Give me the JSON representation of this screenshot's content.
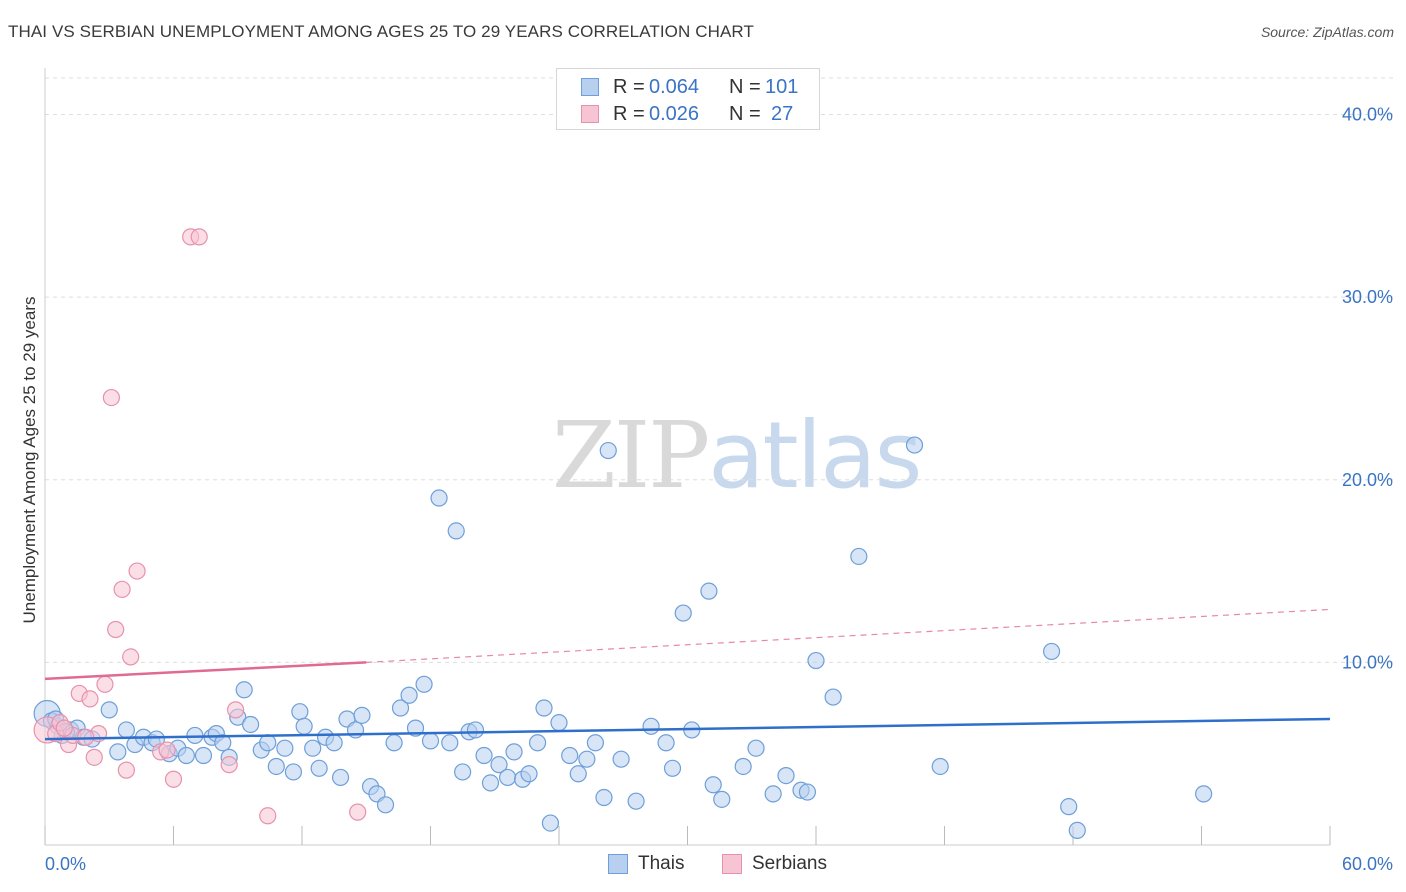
{
  "header": {
    "title": "THAI VS SERBIAN UNEMPLOYMENT AMONG AGES 25 TO 29 YEARS CORRELATION CHART",
    "source": "Source: ZipAtlas.com"
  },
  "watermark": {
    "zip": "ZIP",
    "atlas": "atlas"
  },
  "stats": {
    "r_label": "R =",
    "n_label": "N =",
    "thais": {
      "r": "0.064",
      "n": "101"
    },
    "serbians": {
      "r": "0.026",
      "n": "27"
    }
  },
  "legend": {
    "thais": "Thais",
    "serbians": "Serbians"
  },
  "colors": {
    "thais_fill": "#b7d0f0",
    "thais_stroke": "#6e9fd8",
    "thais_line": "#2f6fcc",
    "serbians_fill": "#f7c4d4",
    "serbians_stroke": "#e891ad",
    "serbians_line": "#e06a93",
    "tick_text": "#3a74c4",
    "grid": "#dddddd"
  },
  "chart_data": {
    "type": "scatter",
    "title": "THAI VS SERBIAN UNEMPLOYMENT AMONG AGES 25 TO 29 YEARS CORRELATION CHART",
    "xlabel": "",
    "ylabel": "Unemployment Among Ages 25 to 29 years",
    "xlim": [
      0,
      60
    ],
    "ylim": [
      0,
      42
    ],
    "x_tick_labels": [
      "0.0%",
      "60.0%"
    ],
    "y_ticks": [
      10,
      20,
      30,
      40
    ],
    "y_tick_labels": [
      "10.0%",
      "20.0%",
      "30.0%",
      "40.0%"
    ],
    "grid": true,
    "legend_position": "bottom-center",
    "series": [
      {
        "name": "Thais",
        "r": 0.064,
        "n": 101,
        "trend": {
          "x": [
            0,
            60
          ],
          "y": [
            5.8,
            6.9
          ]
        },
        "points": [
          [
            0.1,
            7.2
          ],
          [
            0.3,
            6.8
          ],
          [
            0.6,
            6.5
          ],
          [
            0.8,
            6.0
          ],
          [
            1.2,
            6.3
          ],
          [
            1.5,
            6.4
          ],
          [
            1.8,
            5.9
          ],
          [
            2.2,
            5.8
          ],
          [
            3.0,
            7.4
          ],
          [
            3.4,
            5.1
          ],
          [
            3.8,
            6.3
          ],
          [
            4.2,
            5.5
          ],
          [
            4.6,
            5.9
          ],
          [
            5.0,
            5.6
          ],
          [
            5.2,
            5.8
          ],
          [
            5.8,
            5.0
          ],
          [
            6.2,
            5.3
          ],
          [
            6.6,
            4.9
          ],
          [
            7.0,
            6.0
          ],
          [
            7.4,
            4.9
          ],
          [
            7.8,
            5.9
          ],
          [
            8.0,
            6.1
          ],
          [
            8.3,
            5.6
          ],
          [
            8.6,
            4.8
          ],
          [
            9.0,
            7.0
          ],
          [
            9.3,
            8.5
          ],
          [
            9.6,
            6.6
          ],
          [
            10.1,
            5.2
          ],
          [
            10.4,
            5.6
          ],
          [
            10.8,
            4.3
          ],
          [
            11.2,
            5.3
          ],
          [
            11.6,
            4.0
          ],
          [
            11.9,
            7.3
          ],
          [
            12.1,
            6.5
          ],
          [
            12.5,
            5.3
          ],
          [
            12.8,
            4.2
          ],
          [
            13.1,
            5.9
          ],
          [
            13.5,
            5.6
          ],
          [
            13.8,
            3.7
          ],
          [
            14.1,
            6.9
          ],
          [
            14.5,
            6.3
          ],
          [
            14.8,
            7.1
          ],
          [
            15.2,
            3.2
          ],
          [
            15.5,
            2.8
          ],
          [
            15.9,
            2.2
          ],
          [
            16.3,
            5.6
          ],
          [
            16.6,
            7.5
          ],
          [
            17.0,
            8.2
          ],
          [
            17.3,
            6.4
          ],
          [
            17.7,
            8.8
          ],
          [
            18.0,
            5.7
          ],
          [
            18.4,
            19.0
          ],
          [
            18.9,
            5.6
          ],
          [
            19.2,
            17.2
          ],
          [
            19.5,
            4.0
          ],
          [
            19.8,
            6.2
          ],
          [
            20.1,
            6.3
          ],
          [
            20.5,
            4.9
          ],
          [
            20.8,
            3.4
          ],
          [
            21.2,
            4.4
          ],
          [
            21.6,
            3.7
          ],
          [
            21.9,
            5.1
          ],
          [
            22.3,
            3.6
          ],
          [
            22.6,
            3.9
          ],
          [
            23.0,
            5.6
          ],
          [
            23.3,
            7.5
          ],
          [
            23.6,
            1.2
          ],
          [
            24.0,
            6.7
          ],
          [
            24.5,
            4.9
          ],
          [
            24.9,
            3.9
          ],
          [
            25.3,
            4.7
          ],
          [
            25.7,
            5.6
          ],
          [
            26.1,
            2.6
          ],
          [
            26.3,
            21.6
          ],
          [
            26.9,
            4.7
          ],
          [
            27.6,
            2.4
          ],
          [
            28.3,
            6.5
          ],
          [
            29.0,
            5.6
          ],
          [
            29.3,
            4.2
          ],
          [
            29.8,
            12.7
          ],
          [
            30.2,
            6.3
          ],
          [
            31.0,
            13.9
          ],
          [
            31.2,
            3.3
          ],
          [
            31.6,
            2.5
          ],
          [
            32.6,
            4.3
          ],
          [
            33.2,
            5.3
          ],
          [
            34.0,
            2.8
          ],
          [
            34.6,
            3.8
          ],
          [
            35.3,
            3.0
          ],
          [
            35.6,
            2.9
          ],
          [
            36.0,
            10.1
          ],
          [
            36.8,
            8.1
          ],
          [
            38.0,
            15.8
          ],
          [
            40.6,
            21.9
          ],
          [
            41.8,
            4.3
          ],
          [
            47.0,
            10.6
          ],
          [
            47.8,
            2.1
          ],
          [
            48.2,
            0.8
          ],
          [
            54.1,
            2.8
          ],
          [
            0.5,
            6.9
          ],
          [
            1.0,
            6.2
          ]
        ]
      },
      {
        "name": "Serbians",
        "r": 0.026,
        "n": 27,
        "trend": {
          "x": [
            0,
            15
          ],
          "y": [
            9.1,
            10.0
          ],
          "dashed_extension": {
            "x": [
              15,
              60
            ],
            "y": [
              10.0,
              12.9
            ]
          }
        },
        "points": [
          [
            0.1,
            6.3
          ],
          [
            0.5,
            6.1
          ],
          [
            0.7,
            6.7
          ],
          [
            1.1,
            5.5
          ],
          [
            1.3,
            6.0
          ],
          [
            1.6,
            8.3
          ],
          [
            2.1,
            8.0
          ],
          [
            2.3,
            4.8
          ],
          [
            2.5,
            6.1
          ],
          [
            2.8,
            8.8
          ],
          [
            3.1,
            24.5
          ],
          [
            3.3,
            11.8
          ],
          [
            3.6,
            14.0
          ],
          [
            3.8,
            4.1
          ],
          [
            4.0,
            10.3
          ],
          [
            4.3,
            15.0
          ],
          [
            5.4,
            5.1
          ],
          [
            5.7,
            5.2
          ],
          [
            6.0,
            3.6
          ],
          [
            6.8,
            33.3
          ],
          [
            7.2,
            33.3
          ],
          [
            8.6,
            4.4
          ],
          [
            8.9,
            7.4
          ],
          [
            10.4,
            1.6
          ],
          [
            14.6,
            1.8
          ],
          [
            0.9,
            6.4
          ],
          [
            1.9,
            5.9
          ]
        ]
      }
    ]
  }
}
